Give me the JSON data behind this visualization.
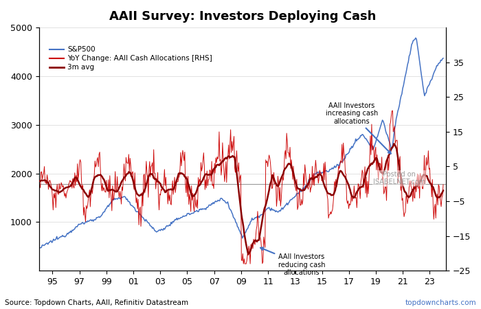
{
  "title": "AAII Survey: Investors Deploying Cash",
  "source_left": "Source: Topdown Charts, AAII, Refinitiv Datastream",
  "source_right": "topdowncharts.com",
  "left_ylim": [
    0,
    5000
  ],
  "right_ylim": [
    -25,
    45
  ],
  "left_yticks": [
    1000,
    2000,
    3000,
    4000,
    5000
  ],
  "right_yticks": [
    -25,
    -15,
    -5,
    5,
    15,
    25,
    35
  ],
  "xtick_years": [
    1995,
    1997,
    1999,
    2001,
    2003,
    2005,
    2007,
    2009,
    2011,
    2013,
    2015,
    2017,
    2019,
    2021,
    2023
  ],
  "xtick_labels": [
    "95",
    "97",
    "99",
    "01",
    "03",
    "05",
    "07",
    "09",
    "11",
    "13",
    "15",
    "17",
    "19",
    "21",
    "23"
  ],
  "sp500_color": "#4472C4",
  "yoy_color": "#CC0000",
  "avg3m_color": "#8B0000",
  "zero_line_color": "#999999",
  "annotation1_text": "AAII Investors\nincreasing cash\nallocations",
  "annotation2_text": "AAII Investors\nreducing cash\nallocations",
  "watermark_text": "Posted on\nISABELNET.com",
  "legend_labels": [
    "S&P500",
    "YoY Change: AAII Cash Allocations [RHS]",
    "3m avg"
  ]
}
